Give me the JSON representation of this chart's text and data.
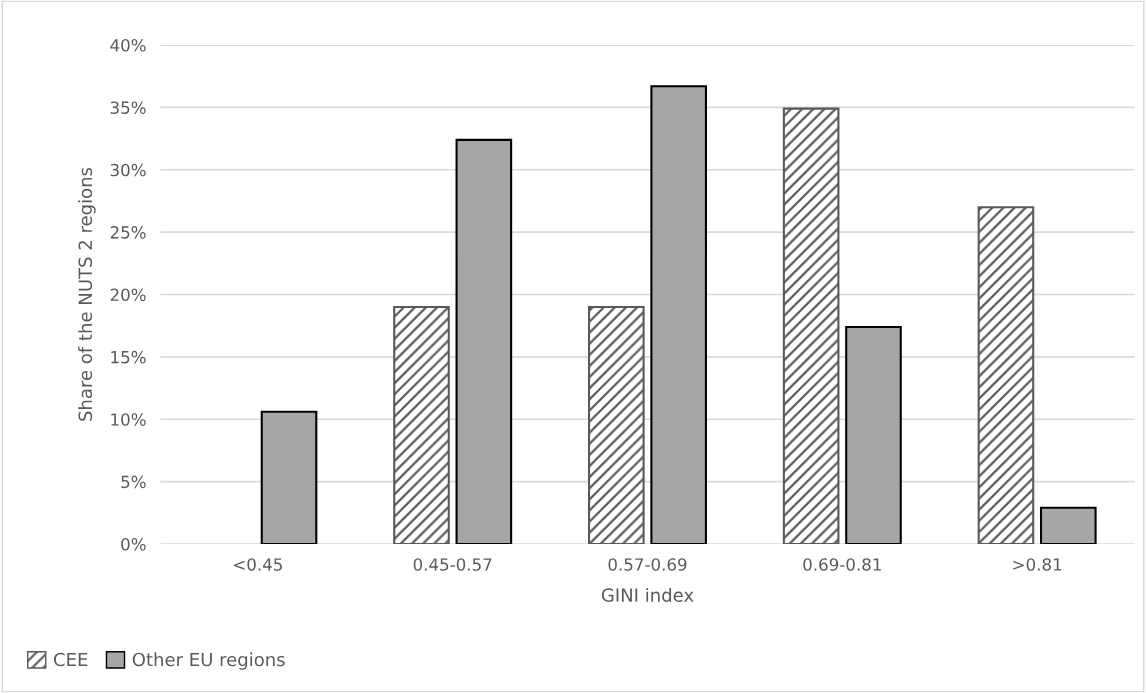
{
  "chart_data": {
    "type": "bar",
    "xlabel": "GINI index",
    "ylabel": "Share of the NUTS 2 regions",
    "categories": [
      "<0.45",
      "0.45-0.57",
      "0.57-0.69",
      "0.69-0.81",
      ">0.81"
    ],
    "series": [
      {
        "name": "CEE",
        "color": "#595959",
        "values": [
          0,
          19.0,
          19.0,
          34.9,
          27.0
        ]
      },
      {
        "name": "Other EU regions",
        "color": "#a6a6a6",
        "values": [
          10.6,
          32.4,
          36.7,
          17.4,
          2.9
        ]
      }
    ],
    "ylim": [
      0,
      40
    ],
    "yticks": [
      {
        "value": 0,
        "label": "0%"
      },
      {
        "value": 5,
        "label": "5%"
      },
      {
        "value": 10,
        "label": "10%"
      },
      {
        "value": 15,
        "label": "15%"
      },
      {
        "value": 20,
        "label": "20%"
      },
      {
        "value": 25,
        "label": "25%"
      },
      {
        "value": 30,
        "label": "30%"
      },
      {
        "value": 35,
        "label": "35%"
      },
      {
        "value": 40,
        "label": "40%"
      }
    ],
    "grid": "y",
    "legend": "bottom left"
  }
}
